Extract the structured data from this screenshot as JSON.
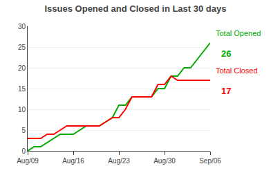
{
  "chart_data": {
    "type": "line",
    "title": "Issues Opened and Closed in Last 30 days",
    "x": [
      0,
      1,
      2,
      3,
      4,
      5,
      6,
      7,
      8,
      9,
      10,
      11,
      12,
      13,
      14,
      15,
      16,
      17,
      18,
      19,
      20,
      21,
      22,
      23,
      24,
      25,
      26,
      27,
      28
    ],
    "series": [
      {
        "color": "#00aa00",
        "values": [
          0,
          1,
          1,
          2,
          3,
          4,
          4,
          4,
          5,
          6,
          6,
          6,
          7,
          8,
          11,
          11,
          13,
          13,
          13,
          13,
          15,
          15,
          18,
          18,
          20,
          20,
          22,
          24,
          26
        ]
      },
      {
        "color": "#ff0000",
        "values": [
          3,
          3,
          3,
          4,
          4,
          5,
          6,
          6,
          6,
          6,
          6,
          6,
          7,
          8,
          8,
          10,
          13,
          13,
          13,
          13,
          16,
          16,
          18,
          17,
          17,
          17,
          17,
          17,
          17
        ]
      }
    ],
    "annotations": [
      {
        "text": "Total Opened",
        "x": 28,
        "y": 26,
        "color": "#00aa00"
      },
      {
        "text": "26",
        "x": 28,
        "y": 26,
        "color": "#00aa00"
      },
      {
        "text": "Total Closed",
        "x": 28,
        "y": 17,
        "color": "#ff0000"
      },
      {
        "text": "17",
        "x": 28,
        "y": 17,
        "color": "#ff0000"
      }
    ],
    "xlim": [
      0,
      28
    ],
    "xticks": [
      {
        "value": 0,
        "label": "Aug/09"
      },
      {
        "value": 7,
        "label": "Aug/16"
      },
      {
        "value": 14,
        "label": "Aug/23"
      },
      {
        "value": 21,
        "label": "Aug/30"
      },
      {
        "value": 28,
        "label": "Sep/06"
      }
    ],
    "ylim": [
      0,
      30
    ],
    "yticks": [
      0,
      5,
      10,
      15,
      20,
      25,
      30
    ],
    "grid": true
  }
}
